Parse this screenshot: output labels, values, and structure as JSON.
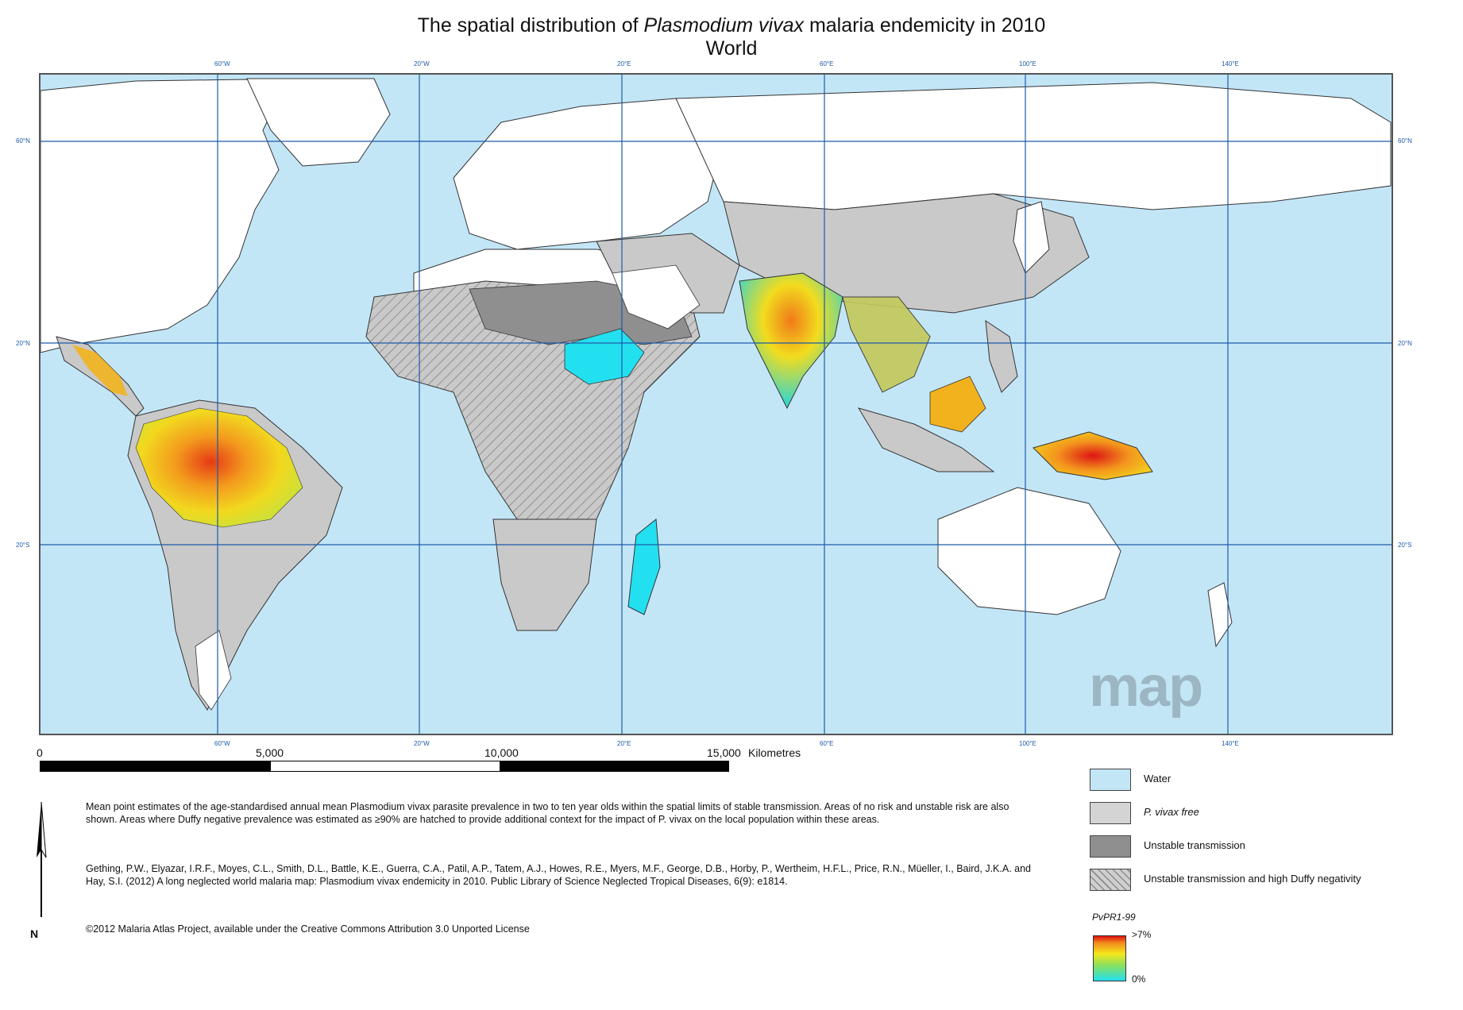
{
  "title": {
    "prefix": "The spatial distribution of ",
    "species": "Plasmodium vivax",
    "suffix": " malaria endemicity in 2010",
    "line2": "World"
  },
  "colors": {
    "water": "#c3e6f7",
    "free": "#ffffff",
    "stable_risk_land": "#c9c9c9",
    "unstable": "#8f8f8f",
    "grid": "#1d5aa8",
    "endemicity_high": "#e01010",
    "endemicity_mid": "#f4e81c",
    "endemicity_low": "#23e0f0"
  },
  "graticule": {
    "longitudes_top": [
      "60°W",
      "20°W",
      "20°E",
      "60°E",
      "100°E",
      "140°E"
    ],
    "latitudes_left": [
      "60°N",
      "20°N",
      "20°S"
    ],
    "latitudes_right": [
      "60°N",
      "20°N",
      "20°S"
    ]
  },
  "scale": {
    "zero": "0",
    "labels": [
      "5,000",
      "10,000",
      "15,000"
    ],
    "unit": "Kilometres"
  },
  "watermark": "map",
  "north_label": "N",
  "legend": {
    "items": [
      {
        "label": "Water",
        "swatch": "water"
      },
      {
        "label": "P. vivax free",
        "swatch": "free_grey"
      },
      {
        "label": "Unstable transmission",
        "swatch": "unstable"
      },
      {
        "label": "Unstable transmission and high Duffy negativity",
        "swatch": "hatched"
      }
    ],
    "gradient_title": "PvPR1-99",
    "gradient_max": ">7%",
    "gradient_min": "0%"
  },
  "description": {
    "para1": "Mean point estimates of the age-standardised annual mean Plasmodium vivax parasite prevalence in two to ten year olds within the spatial limits of stable transmission. Areas of no risk and unstable risk are also shown. Areas where Duffy negative prevalence was estimated as ≥90% are hatched to provide additional context for the impact of P. vivax on the local population within these areas.",
    "citation": "Gething, P.W., Elyazar, I.R.F., Moyes, C.L., Smith, D.L., Battle, K.E., Guerra, C.A., Patil, A.P., Tatem, A.J., Howes, R.E., Myers, M.F., George, D.B., Horby, P., Wertheim, H.F.L., Price, R.N., Müeller, I., Baird, J.K.A. and Hay, S.I. (2012) A long neglected world malaria map: Plasmodium vivax endemicity in 2010. Public Library of Science Neglected Tropical Diseases, 6(9): e1814.",
    "license": "©2012 Malaria Atlas Project, available under the Creative Commons Attribution 3.0 Unported License"
  }
}
